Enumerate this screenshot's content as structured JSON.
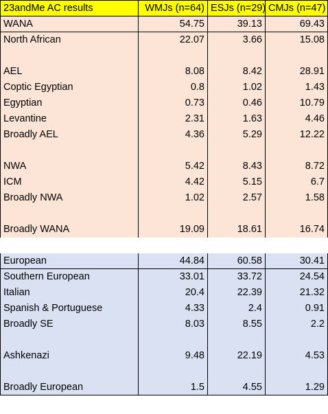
{
  "header": [
    "23andMe AC results",
    "WMJs (n=64)",
    "ESJs (n=29)",
    "CMJs (n=47)"
  ],
  "rows": [
    {
      "label": "WANA",
      "v": [
        "54.75",
        "39.13",
        "69.43"
      ],
      "section": "wana",
      "boxed": true
    },
    {
      "label": "North African",
      "v": [
        "22.07",
        "3.66",
        "15.08"
      ],
      "section": "wana"
    },
    {
      "label": "",
      "v": [
        "",
        "",
        ""
      ],
      "section": "wana"
    },
    {
      "label": "AEL",
      "v": [
        "8.08",
        "8.42",
        "28.91"
      ],
      "section": "wana"
    },
    {
      "label": "Coptic Egyptian",
      "v": [
        "0.8",
        "1.02",
        "1.43"
      ],
      "section": "wana"
    },
    {
      "label": "Egyptian",
      "v": [
        "0.73",
        "0.46",
        "10.79"
      ],
      "section": "wana"
    },
    {
      "label": "Levantine",
      "v": [
        "2.31",
        "1.63",
        "4.46"
      ],
      "section": "wana"
    },
    {
      "label": "Broadly AEL",
      "v": [
        "4.36",
        "5.29",
        "12.22"
      ],
      "section": "wana"
    },
    {
      "label": "",
      "v": [
        "",
        "",
        ""
      ],
      "section": "wana"
    },
    {
      "label": "NWA",
      "v": [
        "5.42",
        "8.43",
        "8.72"
      ],
      "section": "wana"
    },
    {
      "label": "ICM",
      "v": [
        "4.42",
        "5.15",
        "6.7"
      ],
      "section": "wana"
    },
    {
      "label": "Broadly NWA",
      "v": [
        "1.02",
        "2.57",
        "1.58"
      ],
      "section": "wana"
    },
    {
      "label": "",
      "v": [
        "",
        "",
        ""
      ],
      "section": "wana"
    },
    {
      "label": "Broadly WANA",
      "v": [
        "19.09",
        "18.61",
        "16.74"
      ],
      "section": "wana"
    },
    {
      "label": "",
      "v": [
        "",
        "",
        ""
      ],
      "section": "gap"
    },
    {
      "label": "European",
      "v": [
        "44.84",
        "60.58",
        "30.41"
      ],
      "section": "euro",
      "boxed": true
    },
    {
      "label": "Southern European",
      "v": [
        "33.01",
        "33.72",
        "24.54"
      ],
      "section": "euro"
    },
    {
      "label": "Italian",
      "v": [
        "20.4",
        "22.39",
        "21.32"
      ],
      "section": "euro"
    },
    {
      "label": "Spanish & Portuguese",
      "v": [
        "4.33",
        "2.4",
        "0.91"
      ],
      "section": "euro"
    },
    {
      "label": "Broadly SE",
      "v": [
        "8.03",
        "8.55",
        "2.2"
      ],
      "section": "euro"
    },
    {
      "label": "",
      "v": [
        "",
        "",
        ""
      ],
      "section": "euro"
    },
    {
      "label": "Ashkenazi",
      "v": [
        "9.48",
        "22.19",
        "4.53"
      ],
      "section": "euro"
    },
    {
      "label": "",
      "v": [
        "",
        "",
        ""
      ],
      "section": "euro"
    },
    {
      "label": "Broadly European",
      "v": [
        "1.5",
        "4.55",
        "1.29"
      ],
      "section": "euro"
    }
  ],
  "colors": {
    "header": "#ffff00",
    "wana": "#fce4d6",
    "european": "#d9e1f2"
  }
}
